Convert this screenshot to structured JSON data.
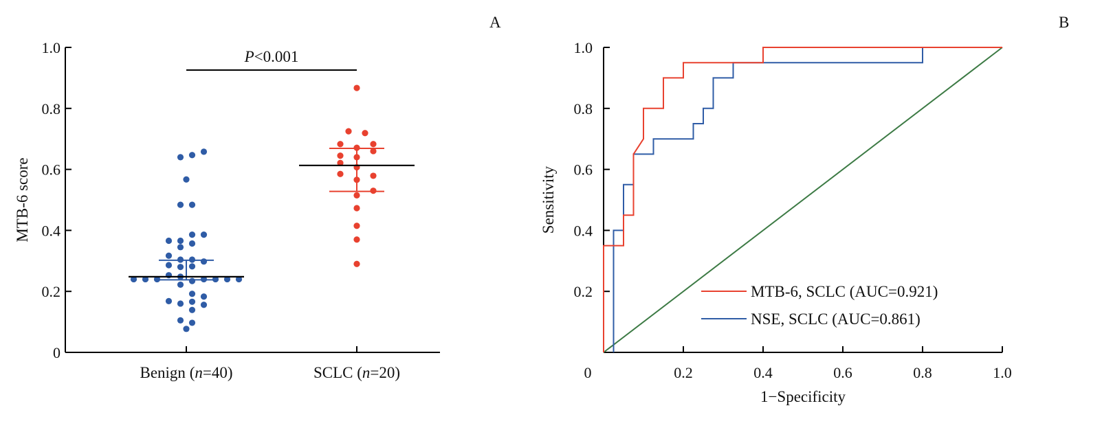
{
  "colors": {
    "benign": "#2f5ca6",
    "sclc": "#e8412f",
    "mtb_roc": "#e8412f",
    "nse_roc": "#2f5ca6",
    "reference": "#3c7a44",
    "mean": "#000000"
  },
  "chart_data": [
    {
      "type": "scatter",
      "panel_label": "A",
      "ylabel": "MTB-6 score",
      "ylim": [
        0,
        1.0
      ],
      "yticks": [
        "0",
        "0.2",
        "0.4",
        "0.6",
        "0.8",
        "1.0"
      ],
      "annotation": {
        "italic": "P",
        "text": "<0.001"
      },
      "groups": [
        {
          "name": "Benign",
          "n_label": "n",
          "n_value": "=40",
          "values": [
            0.64,
            0.647,
            0.658,
            0.567,
            0.484,
            0.484,
            0.386,
            0.386,
            0.366,
            0.366,
            0.357,
            0.345,
            0.317,
            0.304,
            0.304,
            0.298,
            0.286,
            0.28,
            0.282,
            0.253,
            0.248,
            0.24,
            0.24,
            0.24,
            0.24,
            0.24,
            0.24,
            0.24,
            0.234,
            0.222,
            0.192,
            0.183,
            0.168,
            0.16,
            0.166,
            0.156,
            0.139,
            0.105,
            0.097,
            0.077
          ],
          "mean": 0.248,
          "err_low": 0.238,
          "err_high": 0.302
        },
        {
          "name": "SCLC",
          "n_label": "n",
          "n_value": "=20",
          "values": [
            0.867,
            0.725,
            0.719,
            0.683,
            0.683,
            0.671,
            0.66,
            0.645,
            0.64,
            0.621,
            0.607,
            0.585,
            0.579,
            0.566,
            0.53,
            0.515,
            0.473,
            0.415,
            0.37,
            0.29
          ],
          "mean": 0.613,
          "err_low": 0.528,
          "err_high": 0.669
        }
      ]
    },
    {
      "type": "line",
      "panel_label": "B",
      "xlabel": "1−Specificity",
      "ylabel": "Sensitivity",
      "xlim": [
        0,
        1.0
      ],
      "ylim": [
        0,
        1.0
      ],
      "xticks": [
        "0",
        "0.2",
        "0.4",
        "0.6",
        "0.8",
        "1.0"
      ],
      "yticks": [
        "0.2",
        "0.4",
        "0.6",
        "0.8",
        "1.0"
      ],
      "legend_position": "bottom-right",
      "series": [
        {
          "name": "MTB-6, SCLC (AUC=0.921)",
          "x": [
            0,
            0,
            0.05,
            0.05,
            0.075,
            0.075,
            0.1,
            0.1,
            0.15,
            0.15,
            0.2,
            0.2,
            0.4,
            0.4,
            1.0
          ],
          "y": [
            0,
            0.35,
            0.35,
            0.45,
            0.45,
            0.65,
            0.7,
            0.8,
            0.8,
            0.9,
            0.9,
            0.95,
            0.95,
            1.0,
            1.0
          ]
        },
        {
          "name": "NSE, SCLC (AUC=0.861)",
          "x": [
            0.025,
            0.025,
            0.05,
            0.05,
            0.075,
            0.075,
            0.125,
            0.125,
            0.225,
            0.225,
            0.25,
            0.25,
            0.275,
            0.275,
            0.325,
            0.325,
            0.8,
            0.8,
            1.0
          ],
          "y": [
            0,
            0.4,
            0.4,
            0.55,
            0.55,
            0.65,
            0.65,
            0.7,
            0.7,
            0.75,
            0.75,
            0.8,
            0.8,
            0.9,
            0.9,
            0.95,
            0.95,
            1.0,
            1.0
          ]
        },
        {
          "name": "reference",
          "x": [
            0,
            1.0
          ],
          "y": [
            0,
            1.0
          ]
        }
      ]
    }
  ]
}
